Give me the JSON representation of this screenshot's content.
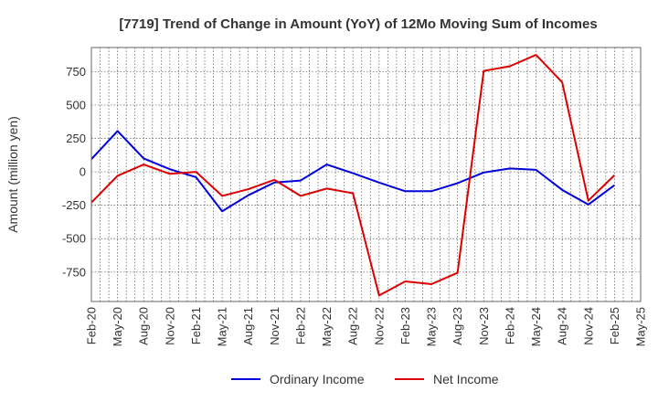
{
  "chart_data": {
    "type": "line",
    "title": "[7719]  Trend of Change in Amount (YoY) of 12Mo Moving Sum of Incomes",
    "xlabel": "",
    "ylabel": "Amount (million yen)",
    "categories": [
      "Feb-20",
      "May-20",
      "Aug-20",
      "Nov-20",
      "Feb-21",
      "May-21",
      "Aug-21",
      "Nov-21",
      "Feb-22",
      "May-22",
      "Aug-22",
      "Nov-22",
      "Feb-23",
      "May-23",
      "Aug-23",
      "Nov-23",
      "Feb-24",
      "May-24",
      "Aug-24",
      "Nov-24",
      "Feb-25",
      "May-25"
    ],
    "ylim": [
      -970,
      930
    ],
    "yticks": [
      -750,
      -500,
      -250,
      0,
      250,
      500,
      750
    ],
    "ytick_labels": [
      "-750",
      "-500",
      "-250",
      "0",
      "250",
      "500",
      "750"
    ],
    "grid": true,
    "legend_position": "bottom",
    "series": [
      {
        "name": "Ordinary Income",
        "color": "#0000dd",
        "values": [
          95,
          305,
          100,
          20,
          -40,
          -295,
          -175,
          -80,
          -65,
          55,
          -10,
          -80,
          -145,
          -145,
          -85,
          -5,
          25,
          15,
          -135,
          -245,
          -100,
          null
        ]
      },
      {
        "name": "Net Income",
        "color": "#dd0000",
        "values": [
          -230,
          -30,
          55,
          -15,
          0,
          -180,
          -130,
          -60,
          -180,
          -125,
          -160,
          -925,
          -820,
          -840,
          -755,
          755,
          790,
          875,
          670,
          -215,
          -25,
          null
        ]
      }
    ]
  }
}
